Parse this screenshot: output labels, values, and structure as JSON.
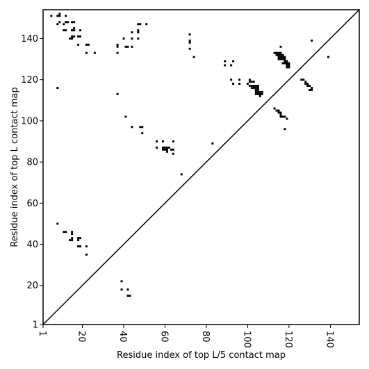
{
  "chart_data": {
    "type": "scatter",
    "title": "",
    "xlabel": "Residue index of top L/5 contact map",
    "ylabel": "Residue index of top L contact map",
    "xlim": [
      1,
      154
    ],
    "ylim": [
      1,
      154
    ],
    "xticks": [
      1,
      20,
      40,
      60,
      80,
      100,
      120,
      140
    ],
    "yticks": [
      1,
      20,
      40,
      60,
      80,
      100,
      120,
      140
    ],
    "marker": "square",
    "color": "#000000",
    "diagonal": true,
    "grid": false,
    "series": [
      {
        "points": [
          [
            5,
            151
          ],
          [
            8,
            151
          ],
          [
            9,
            151
          ],
          [
            9,
            152
          ],
          [
            12,
            151
          ],
          [
            8,
            147
          ],
          [
            9,
            148
          ],
          [
            11,
            147
          ],
          [
            12,
            148
          ],
          [
            13,
            148
          ],
          [
            15,
            148
          ],
          [
            16,
            148
          ],
          [
            11,
            144
          ],
          [
            12,
            144
          ],
          [
            15,
            144
          ],
          [
            16,
            144
          ],
          [
            16,
            145
          ],
          [
            15,
            141
          ],
          [
            16,
            141
          ],
          [
            14,
            140
          ],
          [
            15,
            140
          ],
          [
            18,
            141
          ],
          [
            19,
            141
          ],
          [
            19,
            144
          ],
          [
            18,
            137
          ],
          [
            22,
            137
          ],
          [
            23,
            137
          ],
          [
            22,
            133
          ],
          [
            26,
            133
          ],
          [
            8,
            116
          ],
          [
            37,
            137
          ],
          [
            37,
            136
          ],
          [
            41,
            136
          ],
          [
            42,
            136
          ],
          [
            40,
            140
          ],
          [
            44,
            140
          ],
          [
            44,
            136
          ],
          [
            44,
            143
          ],
          [
            47,
            144
          ],
          [
            47,
            143
          ],
          [
            47,
            147
          ],
          [
            48,
            147
          ],
          [
            51,
            147
          ],
          [
            47,
            140
          ],
          [
            37,
            133
          ],
          [
            37,
            113
          ],
          [
            41,
            102
          ],
          [
            44,
            97
          ],
          [
            48,
            97
          ],
          [
            49,
            97
          ],
          [
            49,
            94
          ],
          [
            72,
            142
          ],
          [
            72,
            139
          ],
          [
            72,
            138
          ],
          [
            72,
            135
          ],
          [
            74,
            131
          ],
          [
            89,
            129
          ],
          [
            93,
            129
          ],
          [
            89,
            127
          ],
          [
            92,
            127
          ],
          [
            92,
            120
          ],
          [
            96,
            120
          ],
          [
            93,
            118
          ],
          [
            96,
            118
          ],
          [
            100,
            118
          ],
          [
            101,
            120
          ],
          [
            101,
            119
          ],
          [
            102,
            119
          ],
          [
            103,
            119
          ],
          [
            101,
            117
          ],
          [
            102,
            117
          ],
          [
            103,
            117
          ],
          [
            104,
            117
          ],
          [
            105,
            117
          ],
          [
            102,
            116
          ],
          [
            103,
            116
          ],
          [
            104,
            116
          ],
          [
            105,
            116
          ],
          [
            104,
            115
          ],
          [
            105,
            115
          ],
          [
            104,
            114
          ],
          [
            105,
            114
          ],
          [
            106,
            114
          ],
          [
            107,
            114
          ],
          [
            104,
            113
          ],
          [
            105,
            113
          ],
          [
            106,
            113
          ],
          [
            107,
            113
          ],
          [
            106,
            112
          ],
          [
            113,
            133
          ],
          [
            114,
            133
          ],
          [
            115,
            133
          ],
          [
            116,
            133
          ],
          [
            114,
            132
          ],
          [
            115,
            132
          ],
          [
            116,
            132
          ],
          [
            117,
            132
          ],
          [
            115,
            131
          ],
          [
            116,
            131
          ],
          [
            117,
            131
          ],
          [
            118,
            131
          ],
          [
            115,
            130
          ],
          [
            116,
            130
          ],
          [
            117,
            130
          ],
          [
            118,
            130
          ],
          [
            116,
            136
          ],
          [
            118,
            129
          ],
          [
            119,
            129
          ],
          [
            117,
            128
          ],
          [
            118,
            128
          ],
          [
            119,
            128
          ],
          [
            120,
            128
          ],
          [
            119,
            127
          ],
          [
            120,
            127
          ],
          [
            119,
            126
          ],
          [
            120,
            126
          ],
          [
            139,
            131
          ],
          [
            131,
            139
          ],
          [
            126,
            120
          ],
          [
            127,
            120
          ],
          [
            128,
            119
          ],
          [
            128,
            118
          ],
          [
            129,
            118
          ],
          [
            129,
            117
          ],
          [
            130,
            117
          ],
          [
            131,
            116
          ],
          [
            131,
            115
          ],
          [
            130,
            115
          ],
          [
            113,
            106
          ],
          [
            114,
            105
          ],
          [
            115,
            105
          ],
          [
            115,
            104
          ],
          [
            116,
            104
          ],
          [
            116,
            103
          ],
          [
            116,
            102
          ],
          [
            117,
            102
          ],
          [
            118,
            102
          ],
          [
            119,
            101
          ],
          [
            118,
            96
          ],
          [
            56,
            90
          ],
          [
            59,
            90
          ],
          [
            64,
            90
          ],
          [
            56,
            87
          ],
          [
            59,
            87
          ],
          [
            60,
            87
          ],
          [
            61,
            87
          ],
          [
            62,
            87
          ],
          [
            60,
            86
          ],
          [
            61,
            86
          ],
          [
            63,
            86
          ],
          [
            64,
            86
          ],
          [
            59,
            86
          ],
          [
            61,
            85
          ],
          [
            64,
            84
          ],
          [
            83,
            89
          ],
          [
            68,
            74
          ],
          [
            8,
            50
          ],
          [
            11,
            46
          ],
          [
            12,
            46
          ],
          [
            14,
            42
          ],
          [
            15,
            42
          ],
          [
            15,
            43
          ],
          [
            15,
            45
          ],
          [
            15,
            46
          ],
          [
            18,
            43
          ],
          [
            19,
            43
          ],
          [
            18,
            42
          ],
          [
            18,
            39
          ],
          [
            19,
            39
          ],
          [
            22,
            39
          ],
          [
            22,
            35
          ],
          [
            39,
            22
          ],
          [
            39,
            18
          ],
          [
            42,
            18
          ],
          [
            42,
            15
          ],
          [
            43,
            15
          ]
        ]
      }
    ]
  }
}
